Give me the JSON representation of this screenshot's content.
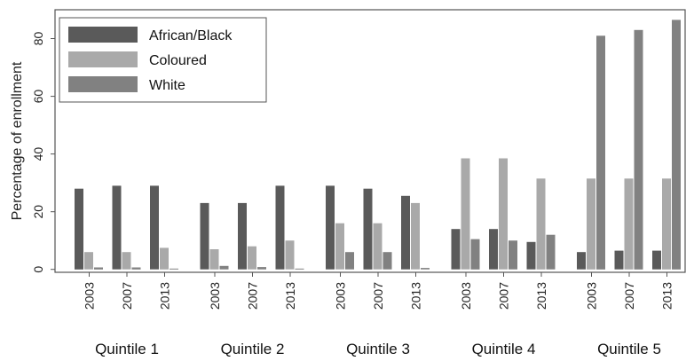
{
  "chart_data": {
    "type": "bar",
    "ylabel": "Percentage of enrollment",
    "ylim": [
      -1,
      90
    ],
    "yticks": [
      0,
      20,
      40,
      60,
      80
    ],
    "grid": false,
    "legend_position": "top-left",
    "groups": [
      "Quintile 1",
      "Quintile 2",
      "Quintile 3",
      "Quintile 4",
      "Quintile 5"
    ],
    "years": [
      "2003",
      "2007",
      "2013"
    ],
    "series": [
      {
        "name": "African/Black",
        "color": "#5a5a5a",
        "values": [
          [
            28,
            29,
            29
          ],
          [
            23,
            23,
            29
          ],
          [
            29,
            28,
            25.5
          ],
          [
            14,
            14,
            9.5
          ],
          [
            6,
            6.5,
            6.5
          ]
        ]
      },
      {
        "name": "Coloured",
        "color": "#a9a9a9",
        "values": [
          [
            6,
            6,
            7.5
          ],
          [
            7,
            8,
            10
          ],
          [
            16,
            16,
            23
          ],
          [
            38.5,
            38.5,
            31.5
          ],
          [
            31.5,
            31.5,
            31.5
          ]
        ]
      },
      {
        "name": "White",
        "color": "#818181",
        "values": [
          [
            0.7,
            0.7,
            0.3
          ],
          [
            1.2,
            0.8,
            0.3
          ],
          [
            6,
            6,
            0.5
          ],
          [
            10.5,
            10,
            12
          ],
          [
            81,
            83,
            86.5
          ]
        ]
      }
    ]
  }
}
